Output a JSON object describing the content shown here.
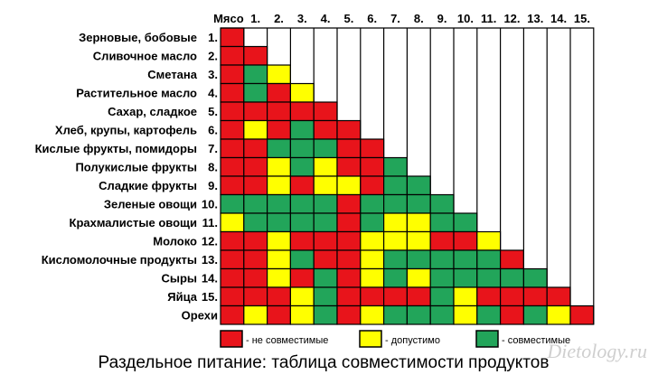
{
  "chart_data": {
    "type": "heatmap",
    "title": "Раздельное питание: таблица совместимости продуктов",
    "corner_label": "Мясо",
    "column_labels": [
      "1.",
      "2.",
      "3.",
      "4.",
      "5.",
      "6.",
      "7.",
      "8.",
      "9.",
      "10.",
      "11.",
      "12.",
      "13.",
      "14.",
      "15."
    ],
    "rows": [
      {
        "name": "Зерновые, бобовые",
        "number": "1."
      },
      {
        "name": "Сливочное масло",
        "number": "2."
      },
      {
        "name": "Сметана",
        "number": "3."
      },
      {
        "name": "Растительное масло",
        "number": "4."
      },
      {
        "name": "Сахар, сладкое",
        "number": "5."
      },
      {
        "name": "Хлеб, крупы, картофель",
        "number": "6."
      },
      {
        "name": "Кислые фрукты, помидоры",
        "number": "7."
      },
      {
        "name": "Полукислые фрукты",
        "number": "8."
      },
      {
        "name": "Сладкие фрукты",
        "number": "9."
      },
      {
        "name": "Зеленые овощи",
        "number": "10."
      },
      {
        "name": "Крахмалистые овощи",
        "number": "11."
      },
      {
        "name": "Молоко",
        "number": "12."
      },
      {
        "name": "Кисломолочные продукты",
        "number": "13."
      },
      {
        "name": "Сыры",
        "number": "14."
      },
      {
        "name": "Яйца",
        "number": "15."
      },
      {
        "name": "Орехи",
        "number": ""
      }
    ],
    "legend": [
      {
        "key": "R",
        "label": "- не совместимые",
        "color": "#e8141b"
      },
      {
        "key": "Y",
        "label": "- допустимо",
        "color": "#ffff00"
      },
      {
        "key": "G",
        "label": "- совместимые",
        "color": "#22a55a"
      }
    ],
    "cells": [
      [
        "R"
      ],
      [
        "R",
        "R"
      ],
      [
        "R",
        "G",
        "Y"
      ],
      [
        "R",
        "G",
        "R",
        "Y"
      ],
      [
        "R",
        "R",
        "R",
        "R",
        "R"
      ],
      [
        "R",
        "Y",
        "R",
        "G",
        "R",
        "R"
      ],
      [
        "R",
        "R",
        "G",
        "G",
        "G",
        "R",
        "R"
      ],
      [
        "R",
        "R",
        "Y",
        "G",
        "Y",
        "R",
        "R",
        "G"
      ],
      [
        "R",
        "R",
        "Y",
        "R",
        "Y",
        "Y",
        "R",
        "G",
        "G"
      ],
      [
        "G",
        "G",
        "G",
        "G",
        "G",
        "R",
        "G",
        "G",
        "G",
        "G"
      ],
      [
        "Y",
        "G",
        "G",
        "G",
        "G",
        "R",
        "G",
        "Y",
        "Y",
        "G",
        "G"
      ],
      [
        "R",
        "R",
        "Y",
        "R",
        "R",
        "R",
        "Y",
        "Y",
        "Y",
        "R",
        "R",
        "Y"
      ],
      [
        "R",
        "R",
        "Y",
        "G",
        "R",
        "R",
        "Y",
        "G",
        "G",
        "G",
        "G",
        "G",
        "R"
      ],
      [
        "R",
        "R",
        "Y",
        "R",
        "G",
        "R",
        "Y",
        "G",
        "Y",
        "G",
        "G",
        "G",
        "G",
        "G"
      ],
      [
        "R",
        "R",
        "R",
        "Y",
        "G",
        "R",
        "R",
        "R",
        "R",
        "G",
        "Y",
        "R",
        "R",
        "R",
        "R"
      ],
      [
        "R",
        "Y",
        "R",
        "Y",
        "G",
        "R",
        "Y",
        "G",
        "G",
        "G",
        "Y",
        "G",
        "R",
        "G",
        "Y",
        "R"
      ]
    ]
  },
  "watermark": "Dietology.ru"
}
